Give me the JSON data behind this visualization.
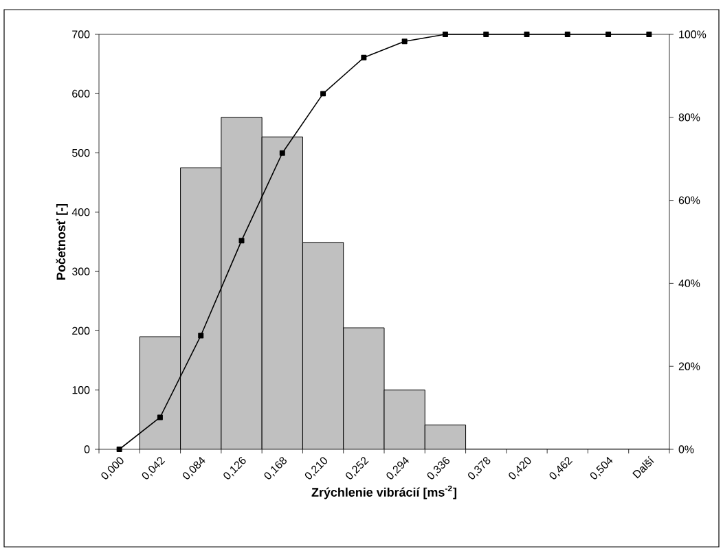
{
  "chart_data": {
    "type": "bar",
    "xlabel": "Zrýchlenie vibrácií   [ms$^{-2}$]",
    "ylabel": "Početnosť  [-]",
    "categories": [
      "0,000",
      "0,042",
      "0,084",
      "0,126",
      "0,168",
      "0,210",
      "0,252",
      "0,294",
      "0,336",
      "0,378",
      "0,420",
      "0,462",
      "0,504",
      "Další"
    ],
    "ylim": [
      0,
      700
    ],
    "yticks": [
      0,
      100,
      200,
      300,
      400,
      500,
      600,
      700
    ],
    "y2lim": [
      0,
      100
    ],
    "y2ticks": [
      {
        "value": 0,
        "label": "0%"
      },
      {
        "value": 20,
        "label": "20%"
      },
      {
        "value": 40,
        "label": "40%"
      },
      {
        "value": 60,
        "label": "60%"
      },
      {
        "value": 80,
        "label": "80%"
      },
      {
        "value": 100,
        "label": "100%"
      }
    ],
    "marker": "square",
    "series": [
      {
        "color": "#c0c0c0",
        "values": [
          null,
          190,
          475,
          560,
          527,
          349,
          205,
          100,
          41,
          0,
          0,
          0,
          0,
          0
        ]
      },
      {
        "type": "line",
        "axis": "y2",
        "color": "#000000",
        "values": [
          0,
          7.7,
          27.4,
          50.3,
          71.4,
          85.7,
          94.4,
          98.3,
          100,
          100,
          100,
          100,
          100,
          100
        ]
      }
    ]
  }
}
